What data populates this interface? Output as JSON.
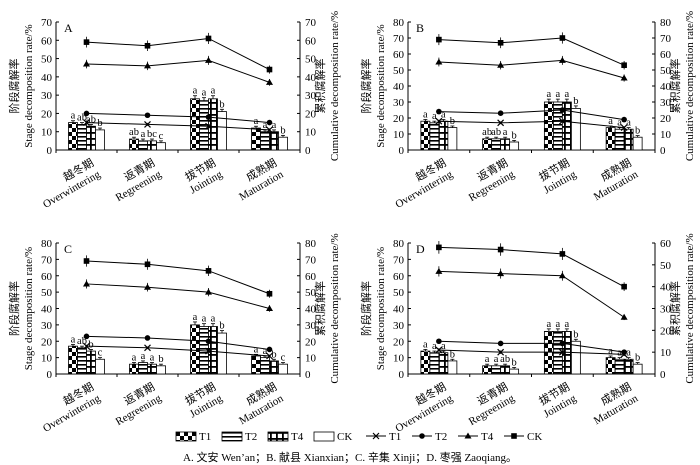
{
  "figure_caption": "A. 文安 Wen’an；B. 献县 Xianxian；C. 辛集 Xinji；D. 枣强 Zaoqiang。",
  "legend": {
    "bar_entries": [
      "T1",
      "T2",
      "T4",
      "CK"
    ],
    "line_entries": [
      "T1",
      "T2",
      "T4",
      "CK"
    ]
  },
  "colors": {
    "ink": "#000000",
    "background": "#ffffff"
  },
  "chart_data": [
    {
      "panel": "A",
      "type": "bar+line",
      "categories": [
        {
          "zh": "越冬期",
          "en": "Overwintering"
        },
        {
          "zh": "返青期",
          "en": "Regreening"
        },
        {
          "zh": "拔节期",
          "en": "Jointing"
        },
        {
          "zh": "成熟期",
          "en": "Maturation"
        }
      ],
      "ylabel_left": {
        "zh": "阶段腐解率",
        "en": "Stage decomposition rate/%"
      },
      "ylabel_right": {
        "zh": "累积腐解率",
        "en": "Cumulative decomposition rate/%"
      },
      "ylim_left": [
        0,
        70
      ],
      "yticks_left": [
        0,
        10,
        20,
        30,
        40,
        50,
        60,
        70
      ],
      "ylim_right": [
        0,
        70
      ],
      "yticks_right": [
        0,
        10,
        20,
        30,
        40,
        50,
        60,
        70
      ],
      "series_names": [
        "T1",
        "T2",
        "T4",
        "CK"
      ],
      "bars": [
        [
          15,
          14,
          13,
          11
        ],
        [
          6,
          5,
          5,
          4
        ],
        [
          28,
          27,
          28,
          21
        ],
        [
          12,
          10,
          10,
          7
        ]
      ],
      "bar_labels": [
        [
          "a",
          "ab",
          "ab",
          "b"
        ],
        [
          "ab",
          "a",
          "bc",
          "c"
        ],
        [
          "a",
          "a",
          "a",
          "b"
        ],
        [
          "a",
          "a",
          "a",
          "b"
        ]
      ],
      "lines": [
        [
          15,
          20,
          47,
          59
        ],
        [
          14,
          19,
          46,
          57
        ],
        [
          13,
          18,
          49,
          61
        ],
        [
          11,
          15,
          37,
          44
        ]
      ]
    },
    {
      "panel": "B",
      "type": "bar+line",
      "categories": [
        {
          "zh": "越冬期",
          "en": "Overwintering"
        },
        {
          "zh": "返青期",
          "en": "Regreening"
        },
        {
          "zh": "拔节期",
          "en": "Jointing"
        },
        {
          "zh": "成熟期",
          "en": "Maturation"
        }
      ],
      "ylabel_left": {
        "zh": "阶段腐解率",
        "en": "Stage decomposition rate/%"
      },
      "ylabel_right": {
        "zh": "累积腐解率",
        "en": "Cumulative decomposition rate/%"
      },
      "ylim_left": [
        0,
        80
      ],
      "yticks_left": [
        0,
        10,
        20,
        30,
        40,
        50,
        60,
        70,
        80
      ],
      "ylim_right": [
        0,
        80
      ],
      "yticks_right": [
        0,
        10,
        20,
        30,
        40,
        50,
        60,
        70,
        80
      ],
      "series_names": [
        "T1",
        "T2",
        "T4",
        "CK"
      ],
      "bars": [
        [
          18,
          17,
          18,
          14
        ],
        [
          7,
          7,
          7,
          5
        ],
        [
          30,
          30,
          30,
          26
        ],
        [
          14,
          13,
          13,
          8
        ]
      ],
      "bar_labels": [
        [
          "a",
          "a",
          "a",
          "b"
        ],
        [
          "ab",
          "ab",
          "a",
          "b"
        ],
        [
          "a",
          "a",
          "a",
          "b"
        ],
        [
          "a",
          "a",
          "a",
          "b"
        ]
      ],
      "lines": [
        [
          18,
          24,
          55,
          69
        ],
        [
          17,
          23,
          53,
          67
        ],
        [
          18,
          25,
          56,
          70
        ],
        [
          14,
          19,
          45,
          53
        ]
      ]
    },
    {
      "panel": "C",
      "type": "bar+line",
      "categories": [
        {
          "zh": "越冬期",
          "en": "Overwintering"
        },
        {
          "zh": "返青期",
          "en": "Regreening"
        },
        {
          "zh": "拔节期",
          "en": "Jointing"
        },
        {
          "zh": "成熟期",
          "en": "Maturation"
        }
      ],
      "ylabel_left": {
        "zh": "阶段腐解率",
        "en": "Stage decomposition rate/%"
      },
      "ylabel_right": {
        "zh": "累积腐解率",
        "en": "Cumulative decomposition rate/%"
      },
      "ylim_left": [
        0,
        80
      ],
      "yticks_left": [
        0,
        10,
        20,
        30,
        40,
        50,
        60,
        70,
        80
      ],
      "ylim_right": [
        0,
        80
      ],
      "yticks_right": [
        0,
        10,
        20,
        30,
        40,
        50,
        60,
        70,
        80
      ],
      "series_names": [
        "T1",
        "T2",
        "T4",
        "CK"
      ],
      "bars": [
        [
          17,
          16,
          14,
          9
        ],
        [
          6,
          7,
          6,
          5
        ],
        [
          30,
          29,
          29,
          25
        ],
        [
          11,
          10,
          8,
          6
        ]
      ],
      "bar_labels": [
        [
          "a",
          "ab",
          "b",
          "c"
        ],
        [
          "a",
          "a",
          "a",
          "b"
        ],
        [
          "a",
          "a",
          "a",
          "b"
        ],
        [
          "a",
          "a",
          "b",
          "c"
        ]
      ],
      "lines": [
        [
          17,
          23,
          55,
          69
        ],
        [
          16,
          22,
          53,
          67
        ],
        [
          14,
          20,
          50,
          63
        ],
        [
          11,
          15,
          40,
          49
        ]
      ]
    },
    {
      "panel": "D",
      "type": "bar+line",
      "categories": [
        {
          "zh": "越冬期",
          "en": "Overwintering"
        },
        {
          "zh": "返青期",
          "en": "Regreening"
        },
        {
          "zh": "拔节期",
          "en": "Jointing"
        },
        {
          "zh": "成熟期",
          "en": "Maturation"
        }
      ],
      "ylabel_left": {
        "zh": "阶段腐解率",
        "en": "Stage decomposition rate/%"
      },
      "ylabel_right": {
        "zh": "累积腐解率",
        "en": "Cumulative decomposition rate/%"
      },
      "ylim_left": [
        0,
        80
      ],
      "yticks_left": [
        0,
        10,
        20,
        30,
        40,
        50,
        60,
        70,
        80
      ],
      "ylim_right": [
        0,
        60
      ],
      "yticks_right": [
        0,
        10,
        20,
        30,
        40,
        50,
        60
      ],
      "series_names": [
        "T1",
        "T2",
        "T4",
        "CK"
      ],
      "bars": [
        [
          14,
          13,
          13,
          8
        ],
        [
          5,
          5,
          5,
          3
        ],
        [
          26,
          26,
          26,
          20
        ],
        [
          10,
          9,
          9,
          6
        ]
      ],
      "bar_labels": [
        [
          "a",
          "a",
          "a",
          "b"
        ],
        [
          "a",
          "a",
          "ab",
          "b"
        ],
        [
          "a",
          "a",
          "a",
          "b"
        ],
        [
          "a",
          "a",
          "a",
          "b"
        ]
      ],
      "lines": [
        [
          11,
          15,
          47,
          58
        ],
        [
          10,
          14,
          46,
          57
        ],
        [
          10,
          14,
          45,
          55
        ],
        [
          9,
          10,
          26,
          40
        ]
      ]
    }
  ]
}
